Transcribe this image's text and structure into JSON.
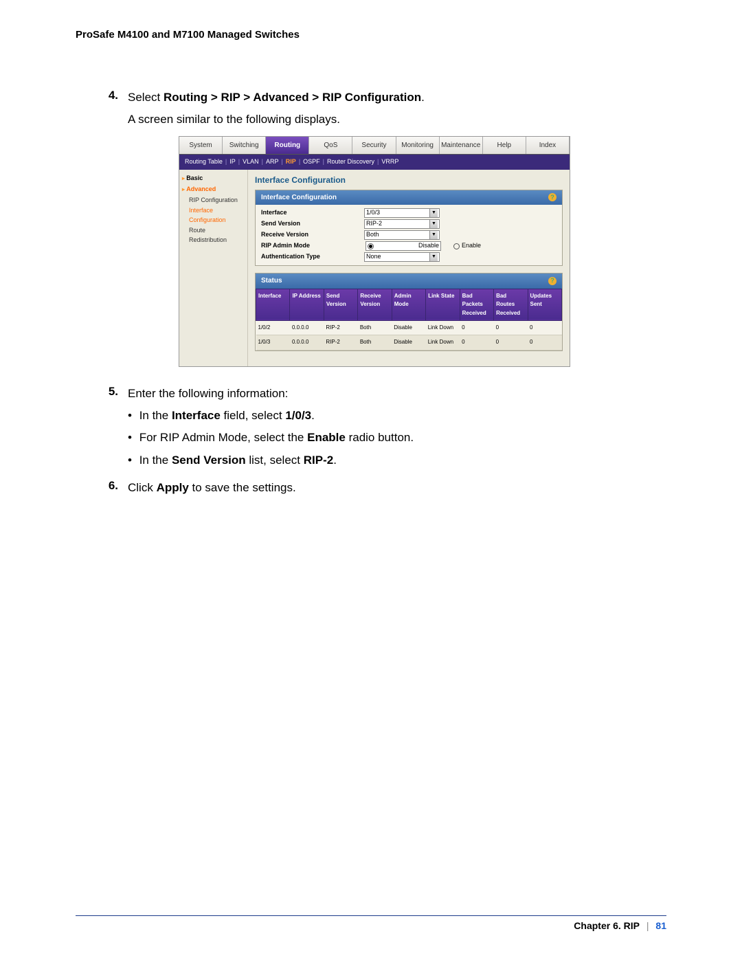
{
  "doc_header": "ProSafe M4100 and M7100 Managed Switches",
  "steps": {
    "s4": {
      "num": "4.",
      "line1_pre": "Select ",
      "line1_bold": "Routing > RIP > Advanced > RIP Configuration",
      "line1_post": ".",
      "line2": "A screen similar to the following displays."
    },
    "s5": {
      "num": "5.",
      "intro": "Enter the following information:",
      "b1_pre": "In the ",
      "b1_bold1": "Interface",
      "b1_mid": " field, select ",
      "b1_bold2": "1/0/3",
      "b1_post": ".",
      "b2_pre": "For RIP Admin Mode, select the ",
      "b2_bold": "Enable",
      "b2_post": " radio button.",
      "b3_pre": "In the ",
      "b3_bold1": "Send Version",
      "b3_mid": " list, select ",
      "b3_bold2": "RIP-2",
      "b3_post": "."
    },
    "s6": {
      "num": "6.",
      "pre": "Click ",
      "bold": "Apply",
      "post": " to save the settings."
    }
  },
  "screenshot": {
    "tabs": [
      "System",
      "Switching",
      "Routing",
      "QoS",
      "Security",
      "Monitoring",
      "Maintenance",
      "Help",
      "Index"
    ],
    "active_tab": "Routing",
    "subtabs": [
      "Routing Table",
      "IP",
      "VLAN",
      "ARP",
      "RIP",
      "OSPF",
      "Router Discovery",
      "VRRP"
    ],
    "active_subtab": "RIP",
    "sidebar": {
      "basic": "Basic",
      "advanced": "Advanced",
      "items": {
        "rip_cfg": "RIP Configuration",
        "iface_cfg": "Interface Configuration",
        "route_redist": "Route Redistribution"
      }
    },
    "main_title": "Interface Configuration",
    "panel1_title": "Interface Configuration",
    "panel2_title": "Status",
    "cfg": {
      "interface_label": "Interface",
      "interface_val": "1/0/3",
      "send_label": "Send Version",
      "send_val": "RIP-2",
      "recv_label": "Receive Version",
      "recv_val": "Both",
      "admin_label": "RIP Admin Mode",
      "disable": "Disable",
      "enable": "Enable",
      "auth_label": "Authentication Type",
      "auth_val": "None"
    },
    "status_headers": [
      "Interface",
      "IP Address",
      "Send Version",
      "Receive Version",
      "Admin Mode",
      "Link State",
      "Bad Packets Received",
      "Bad Routes Received",
      "Updates Sent"
    ],
    "status_rows": [
      [
        "1/0/2",
        "0.0.0.0",
        "RIP-2",
        "Both",
        "Disable",
        "Link Down",
        "0",
        "0",
        "0"
      ],
      [
        "1/0/3",
        "0.0.0.0",
        "RIP-2",
        "Both",
        "Disable",
        "Link Down",
        "0",
        "0",
        "0"
      ]
    ]
  },
  "footer": {
    "chapter": "Chapter 6.  RIP",
    "page": "81"
  },
  "colors": {
    "tab_active_bg": "#4a2b8f",
    "subtab_bg": "#3b2a7a",
    "accent_orange": "#ff6600",
    "panel_head": "#3a6aa8",
    "table_head": "#4a2b8f",
    "body_bg": "#eceade",
    "link_blue": "#1a5fd0"
  }
}
